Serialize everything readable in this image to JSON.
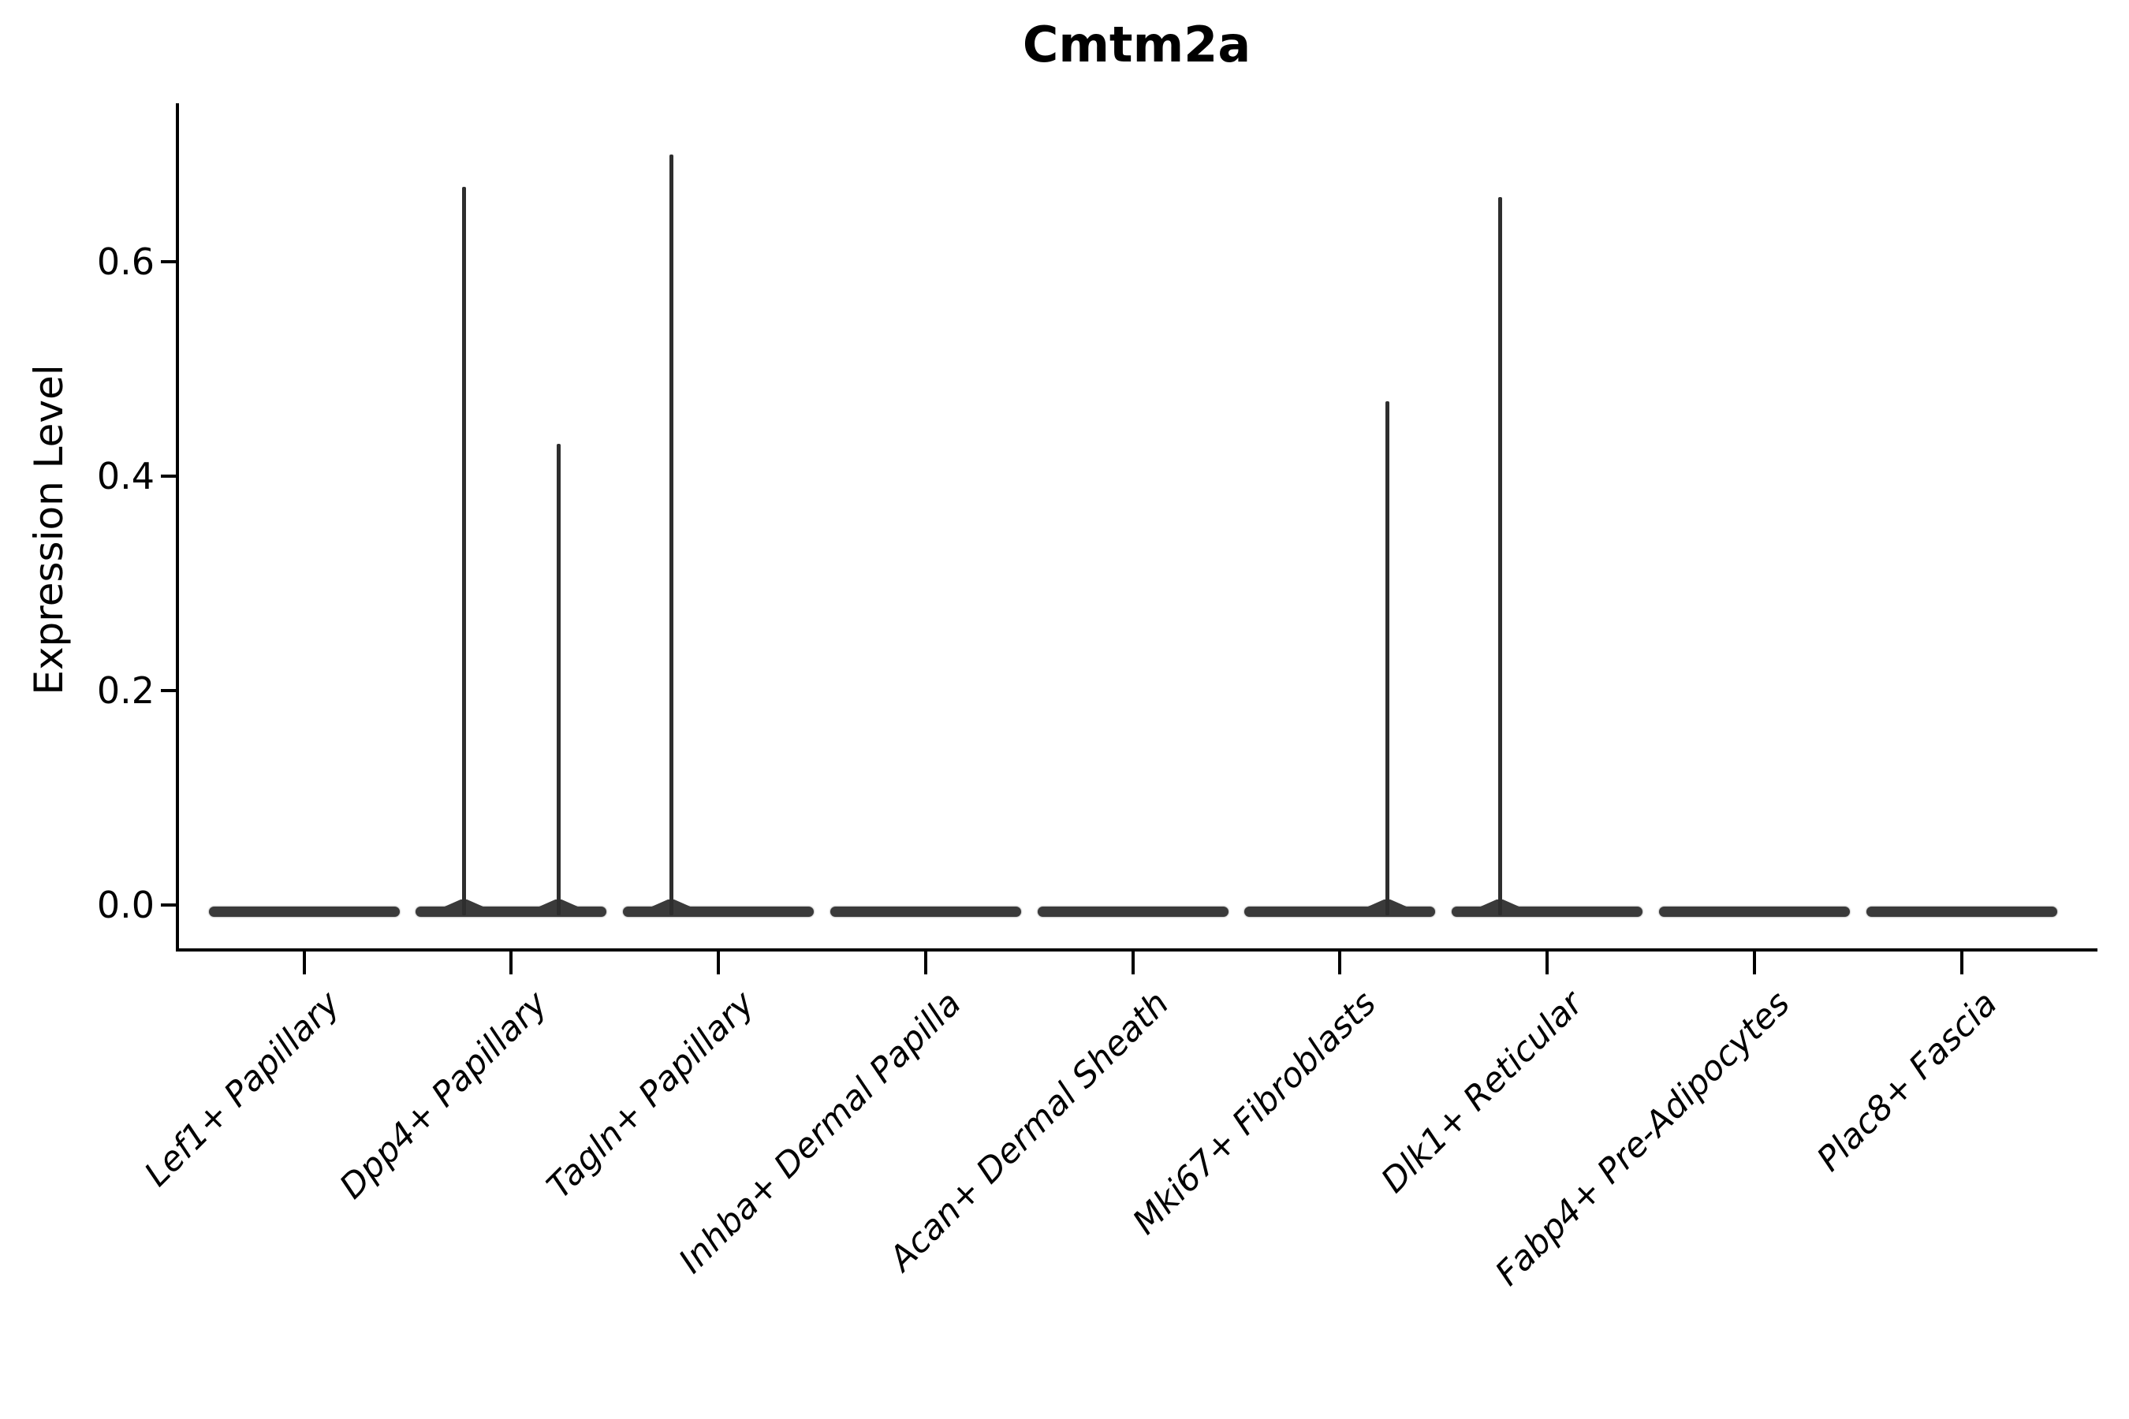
{
  "chart_data": {
    "type": "violin",
    "title": "Cmtm2a",
    "xlabel": "",
    "ylabel": "Expression Level",
    "legend_position": "none",
    "grid": false,
    "background_color": "#ffffff",
    "violin_fill_color": "#3a3a3a",
    "axis_color": "#000000",
    "ylim": [
      -0.04,
      0.75
    ],
    "ytick_labels": [
      "0.0",
      "0.2",
      "0.4",
      "0.6"
    ],
    "ytick_values": [
      0.0,
      0.2,
      0.4,
      0.6
    ],
    "categories": [
      "Lef1+ Papillary",
      "Dpp4+ Papillary",
      "Tagln+ Papillary",
      "Inhba+ Dermal Papilla",
      "Acan+ Dermal Sheath",
      "Mki67+ Fibroblasts",
      "Dlk1+ Reticular",
      "Fabp4+ Pre-Adipocytes",
      "Plac8+ Fascia"
    ],
    "groups_per_category": 2,
    "violins": [
      {
        "category": "Lef1+ Papillary",
        "base_value": 0.0,
        "spikes": []
      },
      {
        "category": "Dpp4+ Papillary",
        "base_value": 0.0,
        "spikes": [
          {
            "group": 1,
            "max_expression": 0.67
          },
          {
            "group": 2,
            "max_expression": 0.43
          }
        ]
      },
      {
        "category": "Tagln+ Papillary",
        "base_value": 0.0,
        "spikes": [
          {
            "group": 1,
            "max_expression": 0.7
          }
        ]
      },
      {
        "category": "Inhba+ Dermal Papilla",
        "base_value": 0.0,
        "spikes": []
      },
      {
        "category": "Acan+ Dermal Sheath",
        "base_value": 0.0,
        "spikes": []
      },
      {
        "category": "Mki67+ Fibroblasts",
        "base_value": 0.0,
        "spikes": [
          {
            "group": 2,
            "max_expression": 0.47
          }
        ]
      },
      {
        "category": "Dlk1+ Reticular",
        "base_value": 0.0,
        "spikes": [
          {
            "group": 1,
            "max_expression": 0.66
          }
        ]
      },
      {
        "category": "Fabp4+ Pre-Adipocytes",
        "base_value": 0.0,
        "spikes": []
      },
      {
        "category": "Plac8+ Fascia",
        "base_value": 0.0,
        "spikes": []
      }
    ]
  }
}
